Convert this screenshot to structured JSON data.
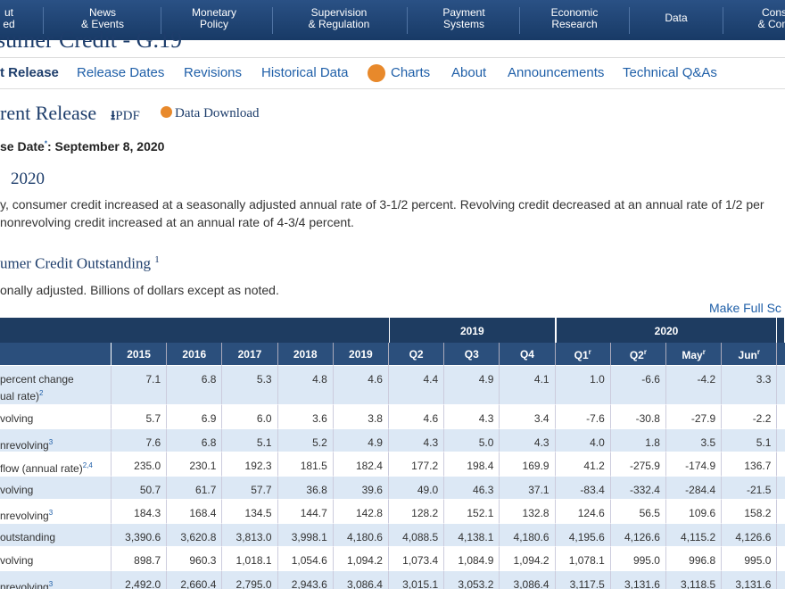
{
  "nav": [
    [
      "ut",
      "ed"
    ],
    [
      "News",
      "& Events"
    ],
    [
      "Monetary",
      "Policy"
    ],
    [
      "Supervision",
      "& Regulation"
    ],
    [
      "Payment",
      "Systems"
    ],
    [
      "Economic",
      "Research"
    ],
    [
      "Data"
    ],
    [
      "Cons",
      "& Com"
    ]
  ],
  "page_title": "sumer Credit - G.19",
  "tabs": [
    "t Release",
    "Release Dates",
    "Revisions",
    "Historical Data",
    "Charts",
    "About",
    "Announcements",
    "Technical Q&As"
  ],
  "heading": {
    "title": "rent Release",
    "pdf": "PDF",
    "download": "Data Download"
  },
  "release_date": {
    "label": "se Date",
    "mark": "*",
    "value": ": September 8, 2020"
  },
  "month_heading": "2020",
  "summary": [
    "y, consumer credit increased at a seasonally adjusted annual rate of 3-1/2 percent. Revolving credit decreased at an annual rate of 1/2 per",
    "nonrevolving credit increased at an annual rate of 4-3/4 percent."
  ],
  "table_title": {
    "text": "umer Credit Outstanding",
    "sup": "1"
  },
  "table_note": "onally adjusted. Billions of dollars except as noted.",
  "full_screen_link": "Make Full Sc",
  "table": {
    "groups": [
      {
        "label": "2019",
        "from": 5,
        "to": 7
      },
      {
        "label": "2020",
        "from": 8,
        "to": 11
      }
    ],
    "columns": [
      {
        "text": "2015"
      },
      {
        "text": "2016"
      },
      {
        "text": "2017"
      },
      {
        "text": "2018"
      },
      {
        "text": "2019"
      },
      {
        "text": "Q2"
      },
      {
        "text": "Q3"
      },
      {
        "text": "Q4"
      },
      {
        "text": "Q1",
        "sup": "r"
      },
      {
        "text": "Q2",
        "sup": "r"
      },
      {
        "text": "May",
        "sup": "r"
      },
      {
        "text": "Jun",
        "sup": "r"
      }
    ],
    "rows": [
      {
        "label": [
          "percent change",
          "ual rate)"
        ],
        "sup": "2",
        "cells": [
          "7.1",
          "6.8",
          "5.3",
          "4.8",
          "4.6",
          "4.4",
          "4.9",
          "4.1",
          "1.0",
          "-6.6",
          "-4.2",
          "3.3"
        ]
      },
      {
        "label": [
          "volving"
        ],
        "cells": [
          "5.7",
          "6.9",
          "6.0",
          "3.6",
          "3.8",
          "4.6",
          "4.3",
          "3.4",
          "-7.6",
          "-30.8",
          "-27.9",
          "-2.2"
        ]
      },
      {
        "label": [
          "nrevolving"
        ],
        "sup": "3",
        "cells": [
          "7.6",
          "6.8",
          "5.1",
          "5.2",
          "4.9",
          "4.3",
          "5.0",
          "4.3",
          "4.0",
          "1.8",
          "3.5",
          "5.1"
        ]
      },
      {
        "label": [
          "flow (annual rate)"
        ],
        "sup": "2,4",
        "cells": [
          "235.0",
          "230.1",
          "192.3",
          "181.5",
          "182.4",
          "177.2",
          "198.4",
          "169.9",
          "41.2",
          "-275.9",
          "-174.9",
          "136.7"
        ]
      },
      {
        "label": [
          "volving"
        ],
        "cells": [
          "50.7",
          "61.7",
          "57.7",
          "36.8",
          "39.6",
          "49.0",
          "46.3",
          "37.1",
          "-83.4",
          "-332.4",
          "-284.4",
          "-21.5"
        ]
      },
      {
        "label": [
          "nrevolving"
        ],
        "sup": "3",
        "cells": [
          "184.3",
          "168.4",
          "134.5",
          "144.7",
          "142.8",
          "128.2",
          "152.1",
          "132.8",
          "124.6",
          "56.5",
          "109.6",
          "158.2"
        ]
      },
      {
        "label": [
          "outstanding"
        ],
        "cells": [
          "3,390.6",
          "3,620.8",
          "3,813.0",
          "3,998.1",
          "4,180.6",
          "4,088.5",
          "4,138.1",
          "4,180.6",
          "4,195.6",
          "4,126.6",
          "4,115.2",
          "4,126.6"
        ]
      },
      {
        "label": [
          "volving"
        ],
        "cells": [
          "898.7",
          "960.3",
          "1,018.1",
          "1,054.6",
          "1,094.2",
          "1,073.4",
          "1,084.9",
          "1,094.2",
          "1,078.1",
          "995.0",
          "996.8",
          "995.0"
        ]
      },
      {
        "label": [
          "nrevolving"
        ],
        "sup": "3",
        "cells": [
          "2,492.0",
          "2,660.4",
          "2,795.0",
          "2,943.6",
          "3,086.4",
          "3,015.1",
          "3,053.2",
          "3,086.4",
          "3,117.5",
          "3,131.6",
          "3,118.5",
          "3,131.6"
        ]
      }
    ]
  }
}
